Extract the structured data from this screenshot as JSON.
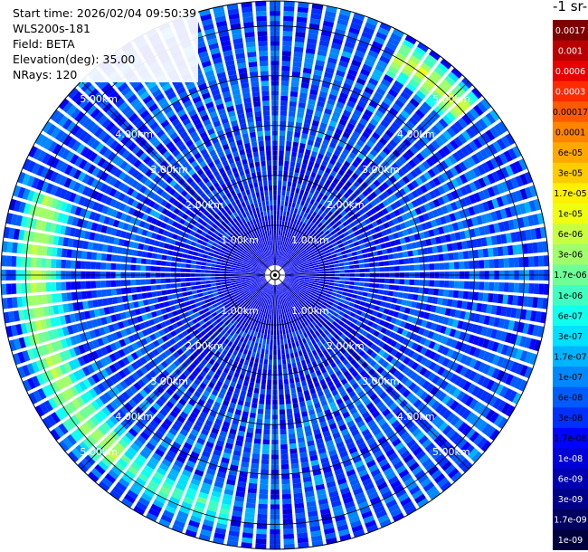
{
  "info": {
    "start_time": "Start time: 2026/02/04 09:50:39",
    "instrument": "WLS200s-181",
    "field": "Field: BETA",
    "elevation": "Elevation(deg): 35.00",
    "nrays": "NRays: 120"
  },
  "colorbar": {
    "title": "-1 sr-",
    "labels": [
      "0.0017",
      "0.001",
      "0.0006",
      "0.0003",
      "0.00017",
      "0.0001",
      "6e-05",
      "3e-05",
      "1.7e-05",
      "1e-05",
      "6e-06",
      "3e-06",
      "1.7e-06",
      "1e-06",
      "6e-07",
      "3e-07",
      "1.7e-07",
      "1e-07",
      "6e-08",
      "3e-08",
      "1.7e-08",
      "1e-08",
      "6e-09",
      "3e-09",
      "1.7e-09",
      "1e-09"
    ],
    "colors": [
      "#7e0000",
      "#b80000",
      "#e80000",
      "#ff2a00",
      "#ff5a00",
      "#ff8400",
      "#ffa800",
      "#ffcc00",
      "#fff000",
      "#f0ff10",
      "#c8ff40",
      "#a0ff6a",
      "#70ff96",
      "#40ffc0",
      "#10ffee",
      "#00e0ff",
      "#00b4ff",
      "#0088ff",
      "#005cff",
      "#0030ff",
      "#0004ff",
      "#0000d8",
      "#0000b0",
      "#000088",
      "#000060",
      "#00003c"
    ],
    "light_text_indices": [
      0,
      1,
      2,
      3,
      21,
      22,
      23,
      24,
      25
    ]
  },
  "chart_data": {
    "type": "heatmap",
    "projection": "polar-ppi",
    "field": "BETA",
    "elevation_deg": 35.0,
    "n_rays": 120,
    "range_rings_km": [
      1,
      2,
      3,
      4,
      5
    ],
    "range_ring_labels": [
      "1.00km",
      "2.00km",
      "3.00km",
      "4.00km",
      "5.00km"
    ],
    "max_range_km": 5.5,
    "spokes_deg": [
      0,
      45,
      90,
      135,
      180,
      225,
      270,
      315
    ],
    "features": [
      {
        "description": "enhanced backscatter band",
        "range_km_start": 4.3,
        "range_km_end": 5.3,
        "azimuth_start_deg": 220,
        "azimuth_end_deg": 290,
        "approx_value": "1e-05"
      },
      {
        "description": "enhanced backscatter band",
        "range_km_start": 4.6,
        "range_km_end": 5.4,
        "azimuth_start_deg": 30,
        "azimuth_end_deg": 50,
        "approx_value": "1.7e-05"
      },
      {
        "description": "enhanced backscatter band",
        "range_km_start": 4.3,
        "range_km_end": 5.3,
        "azimuth_start_deg": 190,
        "azimuth_end_deg": 225,
        "approx_value": "3e-06"
      }
    ],
    "background_value": "1e-08"
  }
}
